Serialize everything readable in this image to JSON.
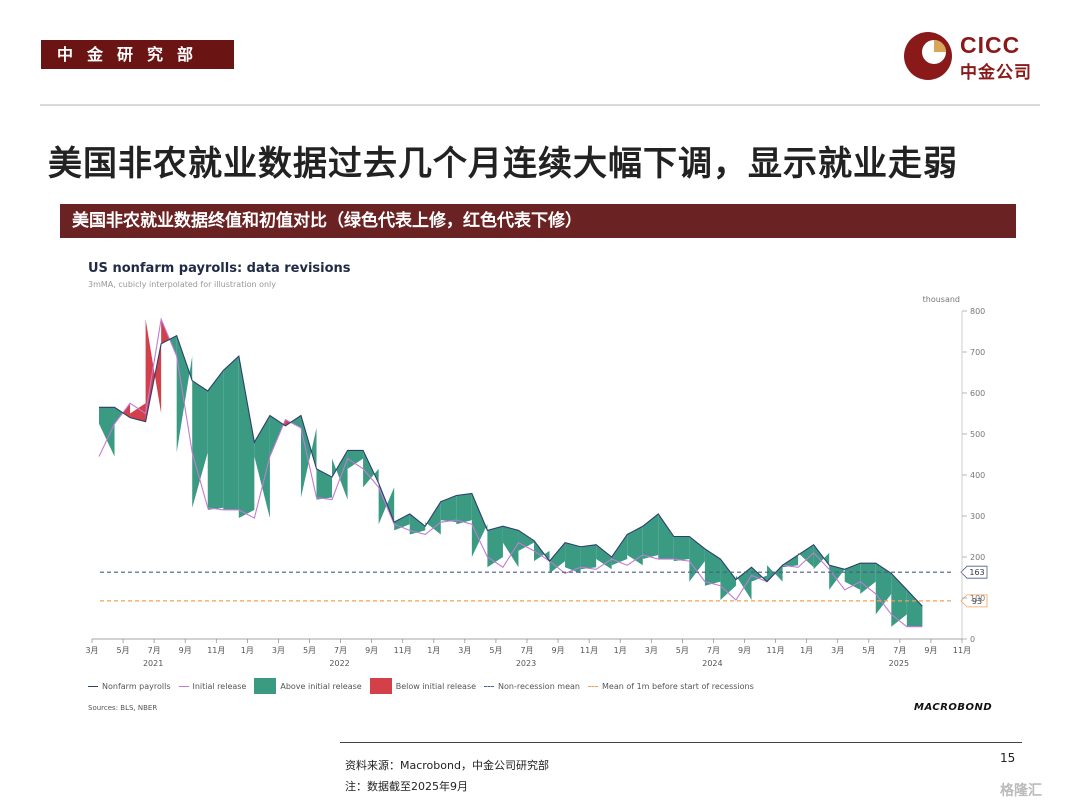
{
  "header": {
    "dept": "中金研究部",
    "logo_en": "CICC",
    "logo_cn": "中金公司",
    "logo_colors": {
      "primary": "#8a1a1a",
      "accent": "#d7a65b"
    }
  },
  "headline": "美国非农就业数据过去几个月连续大幅下调，显示就业走弱",
  "band_title": "美国非农就业数据终值和初值对比（绿色代表上修，红色代表下修）",
  "chart": {
    "title": "US nonfarm payrolls: data revisions",
    "subtitle": "3mMA, cubicly interpolated for illustration only",
    "unit": "thousand",
    "sources": "Sources: BLS, NBER",
    "brand": "MACROBOND"
  },
  "legend": {
    "nonfarm": "Nonfarm payrolls",
    "initial": "Initial release",
    "above": "Above initial release",
    "below": "Below initial release",
    "nonrec": "Non-recession mean",
    "mean1m": "Mean of 1m before start of recessions"
  },
  "footer": {
    "source": "资料来源：Macrobond，中金公司研究部",
    "note": "注：数据截至2025年9月",
    "page": "15",
    "watermark": "格隆汇"
  },
  "chart_data": {
    "type": "area",
    "yticks": [
      "0",
      "100",
      "200",
      "300",
      "400",
      "500",
      "600",
      "700",
      "800"
    ],
    "ylim": [
      0,
      800
    ],
    "x_tick_labels": [
      "3月",
      "5月",
      "7月",
      "9月",
      "11月",
      "1月",
      "3月",
      "5月",
      "7月",
      "9月",
      "11月",
      "1月",
      "3月",
      "5月",
      "7月",
      "9月",
      "11月",
      "1月",
      "3月",
      "5月",
      "7月",
      "9月",
      "11月",
      "1月",
      "3月",
      "5月",
      "7月",
      "9月",
      "11月"
    ],
    "year_labels": [
      {
        "label": "2021",
        "index": 2
      },
      {
        "label": "2022",
        "index": 8
      },
      {
        "label": "2023",
        "index": 14
      },
      {
        "label": "2024",
        "index": 20
      },
      {
        "label": "2025",
        "index": 26
      }
    ],
    "colors": {
      "nonfarm": "#2f3f6b",
      "initial": "#c27ad6",
      "above": "#3a9a82",
      "below": "#d3404a",
      "nonrec": "#4a5c8a",
      "mean1m": "#f2a055"
    },
    "series": [
      {
        "name": "Nonfarm payrolls",
        "values": [
          565,
          565,
          540,
          530,
          720,
          740,
          630,
          605,
          655,
          690,
          480,
          545,
          520,
          545,
          415,
          395,
          460,
          460,
          380,
          285,
          305,
          275,
          335,
          350,
          355,
          265,
          275,
          265,
          240,
          190,
          235,
          225,
          230,
          200,
          255,
          275,
          305,
          250,
          250,
          220,
          195,
          145,
          175,
          140,
          180,
          205,
          230,
          180,
          170,
          185,
          185,
          160,
          120,
          80
        ]
      },
      {
        "name": "Initial release",
        "values": [
          445,
          525,
          575,
          550,
          780,
          690,
          455,
          320,
          315,
          315,
          295,
          445,
          535,
          515,
          345,
          340,
          440,
          415,
          370,
          280,
          265,
          255,
          285,
          290,
          280,
          200,
          175,
          235,
          215,
          190,
          160,
          175,
          170,
          195,
          180,
          205,
          195,
          195,
          190,
          140,
          130,
          95,
          155,
          140,
          180,
          175,
          210,
          170,
          120,
          140,
          110,
          60,
          30,
          30
        ]
      },
      {
        "name": "Non-recession mean",
        "values": [
          163
        ]
      },
      {
        "name": "Mean of 1m before start of recessions",
        "values": [
          93
        ]
      }
    ],
    "mean_labels": [
      "163",
      "93"
    ]
  }
}
